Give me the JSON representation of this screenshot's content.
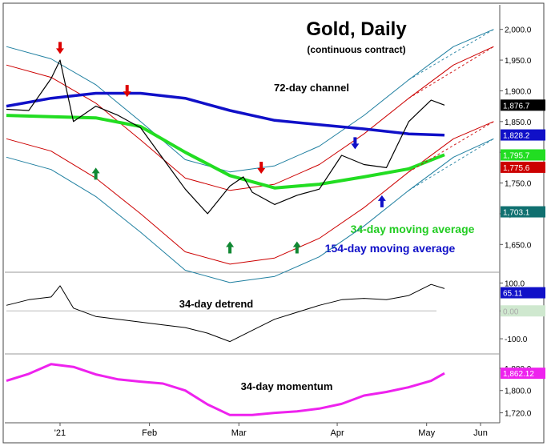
{
  "chart_data": [
    {
      "type": "line",
      "title": "Gold, Daily",
      "subtitle": "(continuous contract)",
      "y_ticks": [
        1650.0,
        1700.0,
        1750.0,
        1800.0,
        1850.0,
        1900.0,
        1950.0,
        2000.0
      ],
      "y_tick_labels": [
        "1,650.0",
        "1,700.0",
        "1,750.0",
        "1,800.0",
        "1,850.0",
        "1,900.0",
        "1,950.0",
        "2,000.0"
      ],
      "ylim": [
        1610,
        2040
      ],
      "x_tick_labels": [
        "'21",
        "Feb",
        "Mar",
        "Apr",
        "May",
        "Jun"
      ],
      "annotations": [
        "72-day channel",
        "34-day moving average",
        "154-day moving average"
      ],
      "value_badges": [
        {
          "text": "1,876.7",
          "value": 1876.7,
          "bg": "#000000",
          "fg": "#ffffff"
        },
        {
          "text": "1,828.2",
          "value": 1828.2,
          "bg": "#1010c8",
          "fg": "#ffffff"
        },
        {
          "text": "1,795.7",
          "value": 1795.7,
          "bg": "#22dd22",
          "fg": "#ffffff"
        },
        {
          "text": "1,775.6",
          "value": 1775.6,
          "bg": "#cc0000",
          "fg": "#ffffff"
        },
        {
          "text": "1,703.1",
          "value": 1703.1,
          "bg": "#107070",
          "fg": "#ffffff"
        }
      ],
      "series": [
        {
          "name": "72-day channel",
          "color": "#1f7fa0",
          "x": [
            0,
            10,
            20,
            30,
            40,
            50,
            60,
            70,
            80,
            90,
            100,
            109
          ],
          "values": [
            1972,
            1952,
            1910,
            1850,
            1788,
            1768,
            1778,
            1810,
            1860,
            1918,
            1972,
            2000
          ]
        },
        {
          "name": "72-day channel",
          "color": "#cc0000",
          "x": [
            0,
            10,
            20,
            30,
            40,
            50,
            60,
            70,
            80,
            90,
            100,
            109
          ],
          "values": [
            1942,
            1922,
            1880,
            1820,
            1758,
            1738,
            1748,
            1780,
            1830,
            1888,
            1942,
            1972
          ]
        },
        {
          "name": "72-day channel",
          "color": "#cc0000",
          "x": [
            0,
            10,
            20,
            30,
            40,
            50,
            60,
            70,
            80,
            90,
            100,
            109
          ],
          "values": [
            1822,
            1802,
            1758,
            1700,
            1638,
            1618,
            1628,
            1660,
            1710,
            1768,
            1822,
            1850
          ]
        },
        {
          "name": "72-day channel",
          "color": "#1f7fa0",
          "x": [
            0,
            10,
            20,
            30,
            40,
            50,
            60,
            70,
            80,
            90,
            100,
            109
          ],
          "values": [
            1792,
            1772,
            1728,
            1670,
            1608,
            1588,
            1598,
            1630,
            1680,
            1738,
            1792,
            1822
          ]
        },
        {
          "name": "34-day moving average",
          "color": "#22dd22",
          "x": [
            0,
            10,
            20,
            30,
            40,
            50,
            60,
            70,
            80,
            90,
            98
          ],
          "values": [
            1860,
            1858,
            1856,
            1842,
            1800,
            1762,
            1742,
            1748,
            1760,
            1773,
            1796
          ]
        },
        {
          "name": "154-day moving average",
          "color": "#1010c8",
          "x": [
            0,
            10,
            20,
            30,
            40,
            50,
            60,
            70,
            80,
            90,
            98
          ],
          "values": [
            1875,
            1888,
            1896,
            1896,
            1888,
            1868,
            1852,
            1845,
            1838,
            1830,
            1828
          ]
        },
        {
          "name": "Gold, Daily",
          "color": "#000000",
          "x": [
            0,
            5,
            10,
            12,
            15,
            20,
            25,
            30,
            35,
            40,
            45,
            50,
            53,
            55,
            60,
            65,
            70,
            75,
            80,
            85,
            90,
            95,
            98
          ],
          "values": [
            1870,
            1868,
            1920,
            1950,
            1850,
            1875,
            1860,
            1840,
            1790,
            1740,
            1700,
            1745,
            1760,
            1735,
            1715,
            1730,
            1740,
            1795,
            1780,
            1775,
            1850,
            1885,
            1876.7
          ]
        }
      ],
      "markers": [
        {
          "x": 12,
          "value": 1960,
          "dir": "down",
          "color": "#dd0000"
        },
        {
          "x": 27,
          "value": 1890,
          "dir": "down",
          "color": "#dd0000"
        },
        {
          "x": 57,
          "value": 1765,
          "dir": "down",
          "color": "#dd0000"
        },
        {
          "x": 20,
          "value": 1775,
          "dir": "up",
          "color": "#118833"
        },
        {
          "x": 50,
          "value": 1655,
          "dir": "up",
          "color": "#118833"
        },
        {
          "x": 65,
          "value": 1655,
          "dir": "up",
          "color": "#118833"
        },
        {
          "x": 78,
          "value": 1805,
          "dir": "down",
          "color": "#1010c8"
        },
        {
          "x": 84,
          "value": 1730,
          "dir": "up",
          "color": "#1010c8"
        }
      ]
    },
    {
      "type": "line",
      "title": "34-day detrend",
      "y_ticks": [
        100.0,
        0.0,
        -100.0
      ],
      "y_tick_labels": [
        "100.0",
        "0.00",
        "-100.0"
      ],
      "ylim": [
        -140,
        130
      ],
      "value_badges": [
        {
          "text": "65.11",
          "value": 65.11,
          "bg": "#1010c8",
          "fg": "#ffffff"
        },
        {
          "text": "0.00",
          "value": 0.0,
          "bg": "#cfe8cf",
          "fg": "#aaaaaa"
        }
      ],
      "series": [
        {
          "name": "34-day detrend",
          "color": "#000000",
          "x": [
            0,
            5,
            10,
            12,
            15,
            20,
            25,
            30,
            35,
            40,
            45,
            50,
            55,
            60,
            65,
            70,
            75,
            80,
            85,
            90,
            95,
            98
          ],
          "values": [
            20,
            40,
            50,
            90,
            10,
            -20,
            -30,
            -40,
            -50,
            -60,
            -80,
            -110,
            -70,
            -30,
            -5,
            20,
            40,
            45,
            40,
            55,
            95,
            80
          ]
        }
      ]
    },
    {
      "type": "line",
      "title": "34-day momentum",
      "y_ticks": [
        1880.0,
        1800.0,
        1720.0
      ],
      "y_tick_labels": [
        "1,880.0",
        "1,800.0",
        "1,720.0"
      ],
      "ylim": [
        1690,
        1920
      ],
      "value_badges": [
        {
          "text": "1,862.12",
          "value": 1862.12,
          "bg": "#ee22ee",
          "fg": "#ffffff"
        }
      ],
      "series": [
        {
          "name": "34-day momentum",
          "color": "#ee22ee",
          "x": [
            0,
            5,
            10,
            15,
            20,
            25,
            30,
            35,
            40,
            45,
            50,
            55,
            60,
            65,
            70,
            75,
            80,
            85,
            90,
            95,
            98
          ],
          "values": [
            1835,
            1860,
            1895,
            1885,
            1858,
            1840,
            1832,
            1825,
            1800,
            1750,
            1712,
            1712,
            1720,
            1725,
            1735,
            1752,
            1782,
            1795,
            1812,
            1835,
            1862
          ]
        }
      ]
    }
  ]
}
